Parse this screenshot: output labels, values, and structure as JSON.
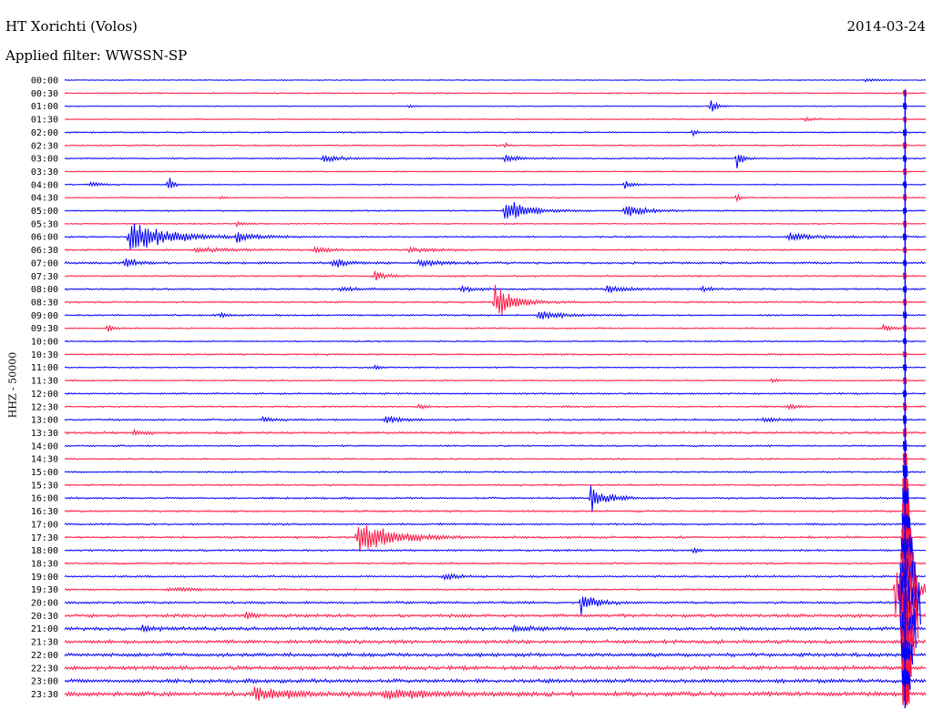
{
  "header": {
    "station": "HT Xorichti (Volos)",
    "filter": "Applied filter: WWSSN-SP",
    "date": "2014-03-24"
  },
  "chart_data": {
    "type": "line",
    "title": "HT Xorichti (Volos)",
    "subtitle": "Applied filter: WWSSN-SP",
    "date": "2014-03-24",
    "ylabel": "HHZ - 50000",
    "xlabel": "",
    "grid": false,
    "trace_colors": [
      "#0000ff",
      "#ff1744"
    ],
    "ticks": [
      "00:00",
      "00:30",
      "01:00",
      "01:30",
      "02:00",
      "02:30",
      "03:00",
      "03:30",
      "04:00",
      "04:30",
      "05:00",
      "05:30",
      "06:00",
      "06:30",
      "07:00",
      "07:30",
      "08:00",
      "08:30",
      "09:00",
      "09:30",
      "10:00",
      "10:30",
      "11:00",
      "11:30",
      "12:00",
      "12:30",
      "13:00",
      "13:30",
      "14:00",
      "14:30",
      "15:00",
      "15:30",
      "16:00",
      "16:30",
      "17:00",
      "17:30",
      "18:00",
      "18:30",
      "19:00",
      "19:30",
      "20:00",
      "20:30",
      "21:00",
      "21:30",
      "22:00",
      "22:30",
      "23:00",
      "23:30"
    ],
    "noise_level": [
      0.4,
      0.6,
      0.4,
      0.5,
      0.6,
      0.6,
      0.6,
      0.5,
      0.5,
      0.5,
      0.6,
      0.5,
      0.7,
      0.7,
      0.9,
      0.7,
      0.8,
      0.7,
      0.7,
      0.6,
      0.6,
      0.7,
      0.6,
      0.6,
      0.7,
      0.7,
      0.8,
      1.0,
      0.7,
      0.7,
      0.7,
      0.7,
      0.8,
      0.8,
      0.8,
      0.9,
      0.8,
      0.8,
      0.8,
      0.8,
      1.0,
      1.3,
      1.4,
      1.5,
      1.5,
      1.6,
      1.6,
      1.9
    ],
    "events": [
      {
        "line": 0,
        "x": 0.93,
        "amp": 2,
        "dur": 0.015
      },
      {
        "line": 2,
        "x": 0.75,
        "amp": 12,
        "dur": 0.006
      },
      {
        "line": 2,
        "x": 0.4,
        "amp": 3,
        "dur": 0.004
      },
      {
        "line": 3,
        "x": 0.86,
        "amp": 3,
        "dur": 0.012
      },
      {
        "line": 4,
        "x": 0.73,
        "amp": 5,
        "dur": 0.004
      },
      {
        "line": 5,
        "x": 0.51,
        "amp": 5,
        "dur": 0.004
      },
      {
        "line": 6,
        "x": 0.3,
        "amp": 5,
        "dur": 0.02
      },
      {
        "line": 6,
        "x": 0.51,
        "amp": 4,
        "dur": 0.02
      },
      {
        "line": 6,
        "x": 0.78,
        "amp": 14,
        "dur": 0.006
      },
      {
        "line": 8,
        "x": 0.03,
        "amp": 4,
        "dur": 0.01
      },
      {
        "line": 8,
        "x": 0.12,
        "amp": 14,
        "dur": 0.005
      },
      {
        "line": 8,
        "x": 0.65,
        "amp": 6,
        "dur": 0.01
      },
      {
        "line": 9,
        "x": 0.18,
        "amp": 3,
        "dur": 0.004
      },
      {
        "line": 9,
        "x": 0.78,
        "amp": 7,
        "dur": 0.004
      },
      {
        "line": 10,
        "x": 0.51,
        "amp": 16,
        "dur": 0.025
      },
      {
        "line": 10,
        "x": 0.65,
        "amp": 10,
        "dur": 0.02
      },
      {
        "line": 11,
        "x": 0.2,
        "amp": 3,
        "dur": 0.01
      },
      {
        "line": 12,
        "x": 0.075,
        "amp": 24,
        "dur": 0.04
      },
      {
        "line": 12,
        "x": 0.2,
        "amp": 6,
        "dur": 0.02
      },
      {
        "line": 12,
        "x": 0.84,
        "amp": 5,
        "dur": 0.03
      },
      {
        "line": 13,
        "x": 0.15,
        "amp": 3,
        "dur": 0.04
      },
      {
        "line": 13,
        "x": 0.29,
        "amp": 5,
        "dur": 0.015
      },
      {
        "line": 13,
        "x": 0.4,
        "amp": 3,
        "dur": 0.03
      },
      {
        "line": 14,
        "x": 0.07,
        "amp": 10,
        "dur": 0.01
      },
      {
        "line": 14,
        "x": 0.31,
        "amp": 7,
        "dur": 0.015
      },
      {
        "line": 14,
        "x": 0.41,
        "amp": 5,
        "dur": 0.02
      },
      {
        "line": 15,
        "x": 0.36,
        "amp": 8,
        "dur": 0.01
      },
      {
        "line": 16,
        "x": 0.32,
        "amp": 4,
        "dur": 0.015
      },
      {
        "line": 16,
        "x": 0.46,
        "amp": 4,
        "dur": 0.015
      },
      {
        "line": 16,
        "x": 0.63,
        "amp": 4,
        "dur": 0.03
      },
      {
        "line": 16,
        "x": 0.74,
        "amp": 4,
        "dur": 0.01
      },
      {
        "line": 17,
        "x": 0.5,
        "amp": 24,
        "dur": 0.02
      },
      {
        "line": 18,
        "x": 0.55,
        "amp": 8,
        "dur": 0.02
      },
      {
        "line": 18,
        "x": 0.18,
        "amp": 3,
        "dur": 0.01
      },
      {
        "line": 19,
        "x": 0.05,
        "amp": 6,
        "dur": 0.005
      },
      {
        "line": 19,
        "x": 0.95,
        "amp": 4,
        "dur": 0.01
      },
      {
        "line": 22,
        "x": 0.36,
        "amp": 3,
        "dur": 0.005
      },
      {
        "line": 23,
        "x": 0.82,
        "amp": 3,
        "dur": 0.01
      },
      {
        "line": 25,
        "x": 0.41,
        "amp": 3,
        "dur": 0.01
      },
      {
        "line": 25,
        "x": 0.84,
        "amp": 4,
        "dur": 0.01
      },
      {
        "line": 26,
        "x": 0.23,
        "amp": 5,
        "dur": 0.01
      },
      {
        "line": 26,
        "x": 0.37,
        "amp": 4,
        "dur": 0.02
      },
      {
        "line": 26,
        "x": 0.81,
        "amp": 4,
        "dur": 0.015
      },
      {
        "line": 27,
        "x": 0.08,
        "amp": 3,
        "dur": 0.02
      },
      {
        "line": 32,
        "x": 0.61,
        "amp": 22,
        "dur": 0.015
      },
      {
        "line": 35,
        "x": 0.34,
        "amp": 24,
        "dur": 0.035
      },
      {
        "line": 36,
        "x": 0.73,
        "amp": 4,
        "dur": 0.005
      },
      {
        "line": 38,
        "x": 0.44,
        "amp": 5,
        "dur": 0.015
      },
      {
        "line": 39,
        "x": 0.12,
        "amp": 3,
        "dur": 0.025
      },
      {
        "line": 39,
        "x": 0.965,
        "amp": 40,
        "dur": 0.02
      },
      {
        "line": 40,
        "x": 0.6,
        "amp": 14,
        "dur": 0.015
      },
      {
        "line": 41,
        "x": 0.21,
        "amp": 6,
        "dur": 0.01
      },
      {
        "line": 42,
        "x": 0.09,
        "amp": 5,
        "dur": 0.01
      },
      {
        "line": 42,
        "x": 0.52,
        "amp": 3,
        "dur": 0.02
      },
      {
        "line": 47,
        "x": 0.22,
        "amp": 8,
        "dur": 0.04
      },
      {
        "line": 47,
        "x": 0.37,
        "amp": 6,
        "dur": 0.05
      }
    ],
    "big_event": {
      "x": 0.975,
      "start_line": 1,
      "peak_line": 40
    }
  }
}
